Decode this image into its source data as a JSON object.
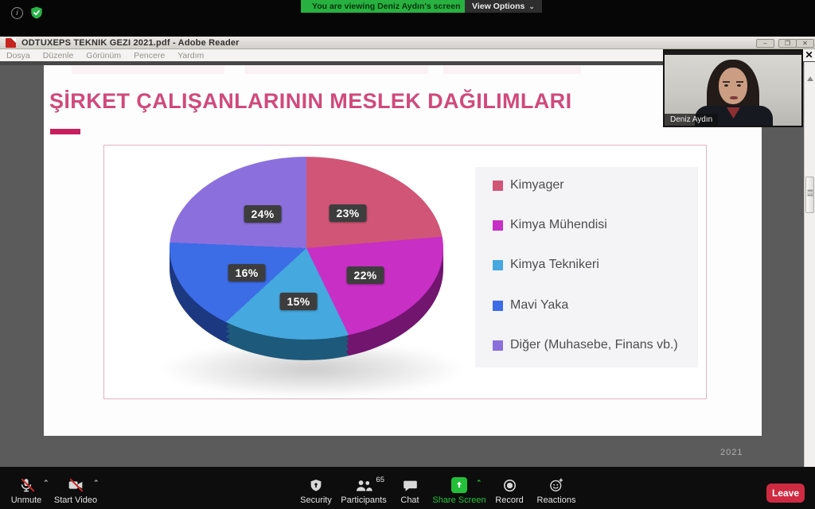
{
  "zoom_top": {
    "banner_text": "You are viewing Deniz Aydın's screen",
    "view_options_label": "View Options",
    "banner_color": "#28b140"
  },
  "adobe": {
    "window_title": "ODTUXEPS TEKNIK GEZI 2021.pdf - Adobe Reader",
    "menu_items": [
      "Dosya",
      "Düzenle",
      "Görünüm",
      "Pencere",
      "Yardım"
    ],
    "minimize_glyph": "–",
    "restore_glyph": "❐",
    "close_glyph": "✕"
  },
  "slide": {
    "title": "ŞİRKET ÇALIŞANLARININ MESLEK DAĞILIMLARI",
    "title_color": "#d04a7b",
    "footer_year": "2021"
  },
  "chart_data": {
    "type": "pie",
    "style": "3d-pie",
    "title": "ŞİRKET ÇALIŞANLARININ MESLEK DAĞILIMLARI",
    "labels": [
      "Kimyager",
      "Kimya Mühendisi",
      "Kimya Teknikeri",
      "Mavi Yaka",
      "Diğer (Muhasebe, Finans vb.)"
    ],
    "values": [
      23,
      22,
      15,
      16,
      24
    ],
    "value_labels": [
      "23%",
      "22%",
      "15%",
      "16%",
      "24%"
    ],
    "colors": [
      "#d15577",
      "#c82fc5",
      "#45a8df",
      "#3c6ce6",
      "#8b70dd"
    ],
    "legend_position": "right",
    "start_angle_deg": 0,
    "direction": "clockwise"
  },
  "webcam": {
    "name": "Deniz Aydın",
    "close_glyph": "✕"
  },
  "toolbar": {
    "unmute_label": "Unmute",
    "start_video_label": "Start Video",
    "security_label": "Security",
    "participants_label": "Participants",
    "participants_count": "65",
    "chat_label": "Chat",
    "share_label": "Share Screen",
    "record_label": "Record",
    "reactions_label": "Reactions",
    "leave_label": "Leave"
  }
}
